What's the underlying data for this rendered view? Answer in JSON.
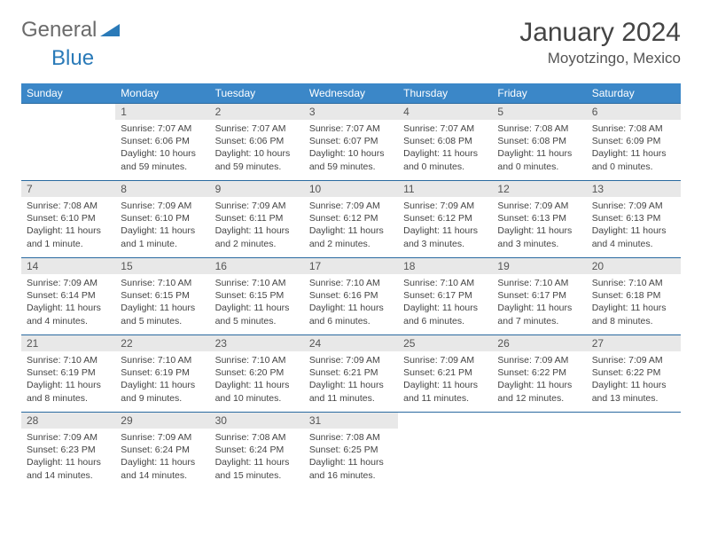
{
  "logo": {
    "text1": "General",
    "text2": "Blue"
  },
  "title": "January 2024",
  "location": "Moyotzingo, Mexico",
  "colors": {
    "header_bg": "#3b87c8",
    "header_text": "#ffffff",
    "border": "#2a6aa0",
    "daynum_bg": "#e8e8e8",
    "text": "#444444"
  },
  "weekdays": [
    "Sunday",
    "Monday",
    "Tuesday",
    "Wednesday",
    "Thursday",
    "Friday",
    "Saturday"
  ],
  "weeks": [
    [
      null,
      {
        "n": "1",
        "sr": "7:07 AM",
        "ss": "6:06 PM",
        "dl": "10 hours and 59 minutes."
      },
      {
        "n": "2",
        "sr": "7:07 AM",
        "ss": "6:06 PM",
        "dl": "10 hours and 59 minutes."
      },
      {
        "n": "3",
        "sr": "7:07 AM",
        "ss": "6:07 PM",
        "dl": "10 hours and 59 minutes."
      },
      {
        "n": "4",
        "sr": "7:07 AM",
        "ss": "6:08 PM",
        "dl": "11 hours and 0 minutes."
      },
      {
        "n": "5",
        "sr": "7:08 AM",
        "ss": "6:08 PM",
        "dl": "11 hours and 0 minutes."
      },
      {
        "n": "6",
        "sr": "7:08 AM",
        "ss": "6:09 PM",
        "dl": "11 hours and 0 minutes."
      }
    ],
    [
      {
        "n": "7",
        "sr": "7:08 AM",
        "ss": "6:10 PM",
        "dl": "11 hours and 1 minute."
      },
      {
        "n": "8",
        "sr": "7:09 AM",
        "ss": "6:10 PM",
        "dl": "11 hours and 1 minute."
      },
      {
        "n": "9",
        "sr": "7:09 AM",
        "ss": "6:11 PM",
        "dl": "11 hours and 2 minutes."
      },
      {
        "n": "10",
        "sr": "7:09 AM",
        "ss": "6:12 PM",
        "dl": "11 hours and 2 minutes."
      },
      {
        "n": "11",
        "sr": "7:09 AM",
        "ss": "6:12 PM",
        "dl": "11 hours and 3 minutes."
      },
      {
        "n": "12",
        "sr": "7:09 AM",
        "ss": "6:13 PM",
        "dl": "11 hours and 3 minutes."
      },
      {
        "n": "13",
        "sr": "7:09 AM",
        "ss": "6:13 PM",
        "dl": "11 hours and 4 minutes."
      }
    ],
    [
      {
        "n": "14",
        "sr": "7:09 AM",
        "ss": "6:14 PM",
        "dl": "11 hours and 4 minutes."
      },
      {
        "n": "15",
        "sr": "7:10 AM",
        "ss": "6:15 PM",
        "dl": "11 hours and 5 minutes."
      },
      {
        "n": "16",
        "sr": "7:10 AM",
        "ss": "6:15 PM",
        "dl": "11 hours and 5 minutes."
      },
      {
        "n": "17",
        "sr": "7:10 AM",
        "ss": "6:16 PM",
        "dl": "11 hours and 6 minutes."
      },
      {
        "n": "18",
        "sr": "7:10 AM",
        "ss": "6:17 PM",
        "dl": "11 hours and 6 minutes."
      },
      {
        "n": "19",
        "sr": "7:10 AM",
        "ss": "6:17 PM",
        "dl": "11 hours and 7 minutes."
      },
      {
        "n": "20",
        "sr": "7:10 AM",
        "ss": "6:18 PM",
        "dl": "11 hours and 8 minutes."
      }
    ],
    [
      {
        "n": "21",
        "sr": "7:10 AM",
        "ss": "6:19 PM",
        "dl": "11 hours and 8 minutes."
      },
      {
        "n": "22",
        "sr": "7:10 AM",
        "ss": "6:19 PM",
        "dl": "11 hours and 9 minutes."
      },
      {
        "n": "23",
        "sr": "7:10 AM",
        "ss": "6:20 PM",
        "dl": "11 hours and 10 minutes."
      },
      {
        "n": "24",
        "sr": "7:09 AM",
        "ss": "6:21 PM",
        "dl": "11 hours and 11 minutes."
      },
      {
        "n": "25",
        "sr": "7:09 AM",
        "ss": "6:21 PM",
        "dl": "11 hours and 11 minutes."
      },
      {
        "n": "26",
        "sr": "7:09 AM",
        "ss": "6:22 PM",
        "dl": "11 hours and 12 minutes."
      },
      {
        "n": "27",
        "sr": "7:09 AM",
        "ss": "6:22 PM",
        "dl": "11 hours and 13 minutes."
      }
    ],
    [
      {
        "n": "28",
        "sr": "7:09 AM",
        "ss": "6:23 PM",
        "dl": "11 hours and 14 minutes."
      },
      {
        "n": "29",
        "sr": "7:09 AM",
        "ss": "6:24 PM",
        "dl": "11 hours and 14 minutes."
      },
      {
        "n": "30",
        "sr": "7:08 AM",
        "ss": "6:24 PM",
        "dl": "11 hours and 15 minutes."
      },
      {
        "n": "31",
        "sr": "7:08 AM",
        "ss": "6:25 PM",
        "dl": "11 hours and 16 minutes."
      },
      null,
      null,
      null
    ]
  ],
  "labels": {
    "sunrise": "Sunrise:",
    "sunset": "Sunset:",
    "daylight": "Daylight:"
  }
}
